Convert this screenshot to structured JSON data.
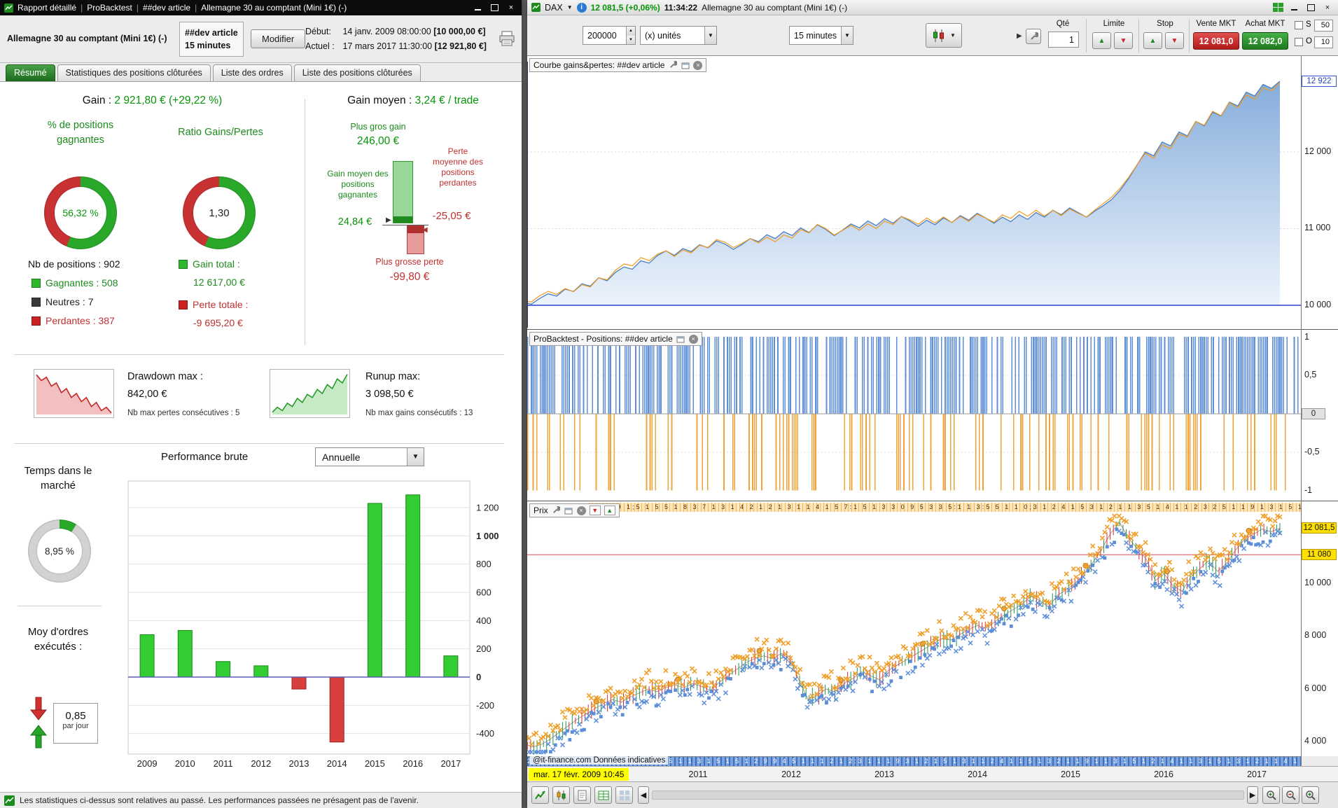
{
  "colors": {
    "accent_green": "#089408",
    "accent_red": "#c03030",
    "equity_blue": "#4a7fc1",
    "marker_orange": "#f0a43c",
    "marker_blue": "#5b8dd9",
    "highlight_yellow": "#ffe000",
    "tab_active_green": "#2d8a2d"
  },
  "left_window": {
    "titlebar": {
      "app_segments": [
        "Rapport détaillé",
        "ProBacktest",
        "##dev article",
        "Allemagne 30 au comptant (Mini 1€) (-)"
      ]
    },
    "header": {
      "instrument": "Allemagne 30 au comptant (Mini 1€) (-)",
      "strategy_name": "##dev article",
      "strategy_timeframe": "15 minutes",
      "modify_button": "Modifier",
      "start_label": "Début:",
      "start_datetime": "14 janv. 2009 08:00:00",
      "start_capital": "[10 000,00 €]",
      "current_label": "Actuel :",
      "current_datetime": "17 mars 2017 11:30:00",
      "current_capital": "[12 921,80 €]"
    },
    "tabs": [
      {
        "label": "Résumé"
      },
      {
        "label": "Statistiques des positions clôturées"
      },
      {
        "label": "Liste des ordres"
      },
      {
        "label": "Liste des positions clôturées"
      }
    ],
    "summary": {
      "gain_label": "Gain :",
      "gain_value": "2 921,80 € (+29,22 %)",
      "gain_moyen_label": "Gain moyen :",
      "gain_moyen_value": "3,24 € / trade",
      "pct_positions_label": "% de positions gagnantes",
      "pct_positions_value": "56,32 %",
      "pct_positions_pct": 56.32,
      "ratio_label": "Ratio Gains/Pertes",
      "ratio_value": "1,30",
      "ratio_green_pct": 56.5,
      "nb_positions": "Nb de positions : 902",
      "legend": [
        {
          "label": "Gagnantes : 508"
        },
        {
          "label": "Neutres : 7"
        },
        {
          "label": "Perdantes : 387"
        }
      ],
      "gain_total_label": "Gain total :",
      "gain_total_value": "12 617,00 €",
      "perte_totale_label": "Perte totale :",
      "perte_totale_value": "-9 695,20 €",
      "plus_gros_gain_label": "Plus gros gain",
      "plus_gros_gain_value": "246,00 €",
      "gain_moyen_gagnantes_label": "Gain moyen des positions gagnantes",
      "gain_moyen_gagnantes_value": "24,84 €",
      "perte_moyenne_label": "Perte moyenne des positions perdantes",
      "perte_moyenne_value": "-25,05 €",
      "plus_grosse_perte_label": "Plus grosse perte",
      "plus_grosse_perte_value": "-99,80 €"
    },
    "drawdown": {
      "dd_label": "Drawdown max :",
      "dd_value": "842,00 €",
      "dd_sub": "Nb max pertes consécutives : 5",
      "ru_label": "Runup max:",
      "ru_value": "3 098,50 €",
      "ru_sub": "Nb max gains consécutifs : 13"
    },
    "performance": {
      "title": "Performance brute",
      "period_selector": "Annuelle"
    },
    "market_time": {
      "label": "Temps dans le marché",
      "value": "8,95 %",
      "pct": 8.95
    },
    "orders_per_day": {
      "label": "Moy d'ordres exécutés :",
      "value": "0,85",
      "unit": "par jour"
    },
    "status_text": "Les statistiques ci-dessus sont relatives au passé. Les performances passées ne présagent pas de l'avenir."
  },
  "right_window": {
    "titlebar": {
      "symbol": "DAX",
      "quote": "12 081,5 (+0,06%)",
      "time": "11:34:22",
      "instrument": "Allemagne 30 au comptant (Mini 1€) (-)"
    },
    "toolbar": {
      "qty_display": "200000",
      "qty_unit": "(x) unités",
      "timeframe": "15 minutes"
    },
    "order_panel": {
      "qty_label": "Qté",
      "qty_value": "1",
      "limit_label": "Limite",
      "stop_label": "Stop",
      "sell_mkt_label": "Vente MKT",
      "buy_mkt_label": "Achat MKT",
      "sell_price": "12 081,0",
      "buy_price": "12 082,0",
      "s_label": "S",
      "s_value": "50",
      "o_label": "O",
      "o_value": "10"
    },
    "panes": {
      "equity": {
        "title": "Courbe gains&pertes: ##dev article",
        "last_label": "12 922",
        "ticks": [
          "12 000",
          "11 000",
          "10 000"
        ]
      },
      "positions": {
        "title": "ProBacktest - Positions: ##dev article",
        "ticks": [
          "1",
          "0,5",
          "0",
          "-0,5",
          "-1"
        ]
      },
      "price": {
        "title": "Prix",
        "current_label": "12 081,5",
        "alert_label": "11 080",
        "ticks": [
          "10 000",
          "8 000",
          "6 000",
          "4 000"
        ],
        "top_strip": "2 2:3 9 1;5 1 5 5 1 8 3 7 1 3 1 4 2 1 2 1 3 1 1 4 1 5 7:1 5 1 3 3 0 9 5 3 3 5:1 1 3:5 5 1 1 0;3 1 2 4 1 5 3 1 2 1 1 3 5 1 4 1 1 2 3 2 5 1 1 9 1 3 1 5 1 2 1 1 4 1 3 5 1 2 1 3 1 1 5 2 1 4 1",
        "bottom_strip": "2 5:3 1 1;2 1 3 1;4 1 4 1 5 3 5 1 1 3 1 5 1 5 1 2 9 9 4 5 1 1 1 2 1 2:3 1 1 1 9 3 1 2 1 5 1 3 1 1 2 4 1 1 5 1 3 2 1 1 9 1 1 3 1 5 1 2 1 4 1 1 3 1 5 1 3 1 2 1 1 4 1 2",
        "watermark": "@it-finance.com  Données indicatives"
      }
    },
    "xaxis": {
      "cursor_date": "mar. 17 févr. 2009 10:45",
      "years": [
        "2011",
        "2012",
        "2013",
        "2014",
        "2015",
        "2016",
        "2017"
      ]
    }
  },
  "chart_data": [
    {
      "id": "equity_curve",
      "type": "area",
      "title": "Courbe gains&pertes: ##dev article",
      "ylim": [
        9700,
        13200
      ],
      "yticks": [
        10000,
        11000,
        12000
      ],
      "baseline": 10000,
      "last_value": 12922,
      "x_range_years": [
        2009.04,
        2017.2
      ],
      "values": [
        10000,
        10040,
        10015,
        10090,
        10150,
        10120,
        10210,
        10180,
        10280,
        10250,
        10360,
        10320,
        10430,
        10500,
        10470,
        10580,
        10550,
        10650,
        10710,
        10650,
        10740,
        10700,
        10790,
        10750,
        10840,
        10800,
        10730,
        10790,
        10870,
        10830,
        10920,
        10870,
        10960,
        10910,
        11010,
        10950,
        11050,
        10990,
        10910,
        10980,
        11060,
        11010,
        11100,
        11040,
        11130,
        11070,
        11160,
        11100,
        11030,
        11110,
        11050,
        11140,
        11080,
        11170,
        11110,
        11200,
        11140,
        11070,
        11150,
        11090,
        11180,
        11120,
        11210,
        11150,
        11240,
        11180,
        11270,
        11210,
        11150,
        11230,
        11300,
        11380,
        11500,
        11650,
        11830,
        12000,
        11950,
        12130,
        12080,
        12260,
        12210,
        12400,
        12340,
        12520,
        12470,
        12650,
        12600,
        12780,
        12730,
        12880,
        12830,
        12922
      ]
    },
    {
      "id": "positions_activity",
      "type": "bar",
      "title": "ProBacktest - Positions: ##dev article",
      "yticks": [
        1,
        0.5,
        0,
        -0.5,
        -1
      ],
      "seed": 7,
      "columns": 430,
      "long_density": 0.62,
      "short_density": 0.32
    },
    {
      "id": "price_dax",
      "type": "line",
      "title": "Prix",
      "ylim": [
        3300,
        12620
      ],
      "yticks": [
        4000,
        6000,
        8000,
        10000
      ],
      "alert_level": 11080,
      "last_price": 12081.5,
      "x_range_years": [
        2009.04,
        2017.2
      ],
      "marker_seed": 13,
      "marker_count": 320,
      "values": [
        4150,
        3950,
        3800,
        3900,
        4100,
        4350,
        4600,
        4850,
        5050,
        5250,
        5450,
        5600,
        5500,
        5700,
        5850,
        6000,
        5900,
        6050,
        6150,
        6050,
        6200,
        6100,
        5950,
        6250,
        6500,
        6750,
        7000,
        7150,
        7250,
        7150,
        7350,
        7100,
        6300,
        5600,
        5750,
        6000,
        5900,
        6200,
        6400,
        6650,
        6500,
        6350,
        6700,
        6900,
        7100,
        7300,
        7500,
        7700,
        7900,
        7850,
        8050,
        8250,
        8400,
        8300,
        8550,
        8800,
        9000,
        9200,
        9500,
        9350,
        9100,
        9550,
        9750,
        10000,
        10350,
        10800,
        11300,
        11900,
        12300,
        11700,
        11300,
        10900,
        10100,
        10350,
        9900,
        9700,
        10250,
        10550,
        10850,
        10450,
        10750,
        11250,
        11650,
        11850,
        12050,
        11950,
        12081
      ]
    },
    {
      "id": "annual_performance",
      "type": "bar",
      "title": "Performance brute",
      "period": "Annuelle",
      "categories": [
        "2009",
        "2010",
        "2011",
        "2012",
        "2013",
        "2014",
        "2015",
        "2016",
        "2017"
      ],
      "values": [
        300,
        330,
        110,
        80,
        -85,
        -460,
        1230,
        1290,
        150
      ],
      "ylim": [
        -500,
        1300
      ],
      "yticks": [
        -400,
        -200,
        0,
        200,
        400,
        600,
        800,
        1000,
        1200
      ],
      "ylabels": [
        "-400",
        "-200",
        "0",
        "200",
        "400",
        "600",
        "800",
        "1 000",
        "1 200"
      ],
      "bold_ticks": [
        0,
        1000
      ]
    },
    {
      "id": "drawdown_sparkline",
      "type": "area",
      "values": [
        96,
        82,
        90,
        68,
        76,
        52,
        62,
        40,
        50,
        30,
        40,
        18,
        28,
        8,
        16,
        2
      ]
    },
    {
      "id": "runup_sparkline",
      "type": "area",
      "values": [
        4,
        16,
        8,
        26,
        18,
        38,
        28,
        48,
        40,
        60,
        50,
        72,
        62,
        86,
        76,
        97
      ]
    }
  ]
}
